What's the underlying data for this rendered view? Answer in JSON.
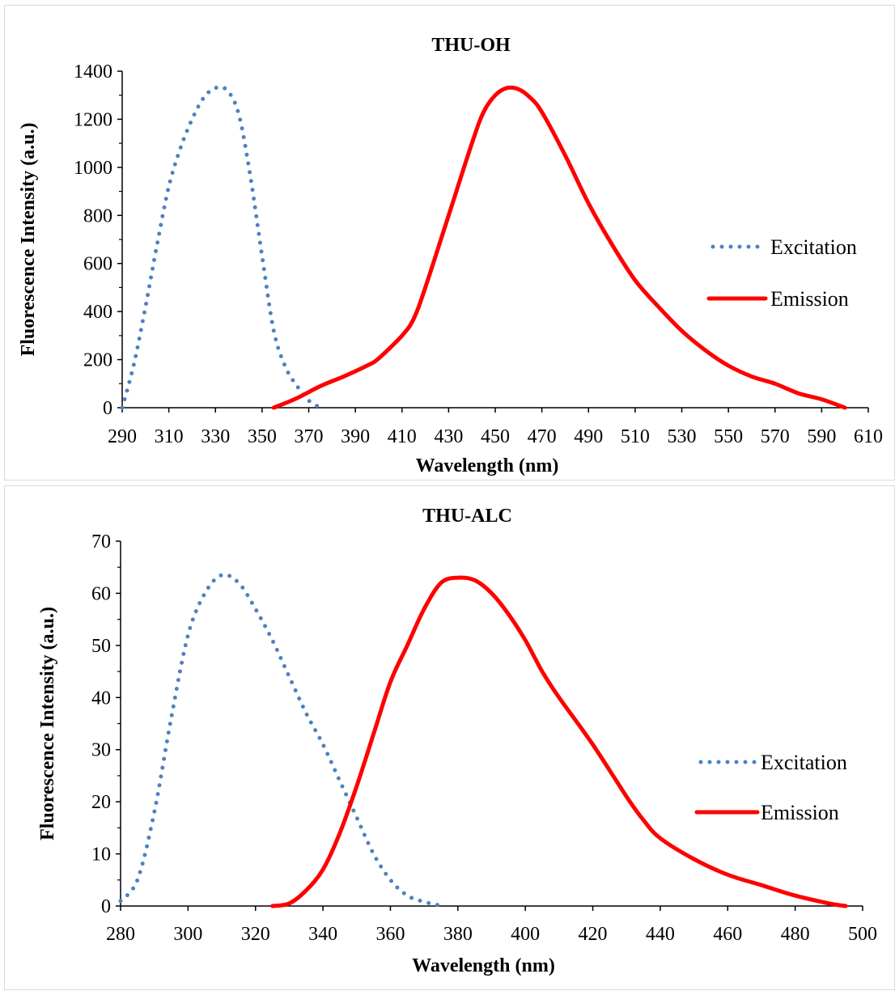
{
  "chart_data": [
    {
      "type": "line",
      "title": "THU-OH",
      "xlabel": "Wavelength (nm)",
      "ylabel": "Fluorescence Intensity (a.u.)",
      "xlim": [
        290,
        610
      ],
      "ylim": [
        0,
        1400
      ],
      "x_ticks": [
        "290",
        "310",
        "330",
        "350",
        "370",
        "390",
        "410",
        "430",
        "450",
        "470",
        "490",
        "510",
        "530",
        "550",
        "570",
        "590",
        "610"
      ],
      "y_ticks": [
        "0",
        "200",
        "400",
        "600",
        "800",
        "1000",
        "1200",
        "1400"
      ],
      "grid": false,
      "legend": "right",
      "series": [
        {
          "name": "Excitation",
          "style": "dotted",
          "color": "#4f81bd",
          "x": [
            290,
            295,
            300,
            305,
            310,
            315,
            320,
            325,
            330,
            335,
            340,
            345,
            350,
            355,
            360,
            365,
            370,
            375
          ],
          "y": [
            0,
            180,
            420,
            680,
            920,
            1080,
            1200,
            1290,
            1330,
            1320,
            1220,
            960,
            630,
            320,
            170,
            90,
            30,
            0
          ]
        },
        {
          "name": "Emission",
          "style": "solid",
          "color": "#ff0000",
          "x": [
            355,
            365,
            375,
            385,
            395,
            400,
            410,
            415,
            420,
            430,
            440,
            445,
            450,
            455,
            460,
            465,
            470,
            480,
            490,
            500,
            510,
            520,
            530,
            540,
            550,
            560,
            570,
            580,
            590,
            600
          ],
          "y": [
            0,
            40,
            90,
            130,
            175,
            205,
            300,
            370,
            500,
            800,
            1100,
            1230,
            1300,
            1330,
            1325,
            1290,
            1230,
            1050,
            850,
            680,
            530,
            420,
            320,
            240,
            175,
            130,
            100,
            60,
            35,
            0
          ]
        }
      ]
    },
    {
      "type": "line",
      "title": "THU-ALC",
      "xlabel": "Wavelength (nm)",
      "ylabel": "Fluorescence Intensity (a.u.)",
      "xlim": [
        280,
        500
      ],
      "ylim": [
        0,
        70
      ],
      "x_ticks": [
        "280",
        "300",
        "320",
        "340",
        "360",
        "380",
        "400",
        "420",
        "440",
        "460",
        "480",
        "500"
      ],
      "y_ticks": [
        "0",
        "10",
        "20",
        "30",
        "40",
        "50",
        "60",
        "70"
      ],
      "grid": false,
      "legend": "right",
      "series": [
        {
          "name": "Excitation",
          "style": "dotted",
          "color": "#4f81bd",
          "x": [
            280,
            285,
            290,
            295,
            300,
            305,
            310,
            315,
            320,
            325,
            330,
            335,
            340,
            345,
            350,
            355,
            360,
            365,
            370,
            374
          ],
          "y": [
            1,
            5,
            18,
            36,
            52,
            60,
            63.5,
            62,
            57,
            51,
            44,
            37,
            31,
            24,
            17,
            10,
            5,
            2,
            0.8,
            0.2
          ]
        },
        {
          "name": "Emission",
          "style": "solid",
          "color": "#ff0000",
          "x": [
            325,
            330,
            335,
            340,
            345,
            350,
            355,
            360,
            365,
            370,
            375,
            380,
            385,
            390,
            395,
            400,
            405,
            410,
            420,
            430,
            435,
            440,
            450,
            460,
            470,
            480,
            490,
            495
          ],
          "y": [
            0,
            0.5,
            3,
            7,
            14,
            23,
            33,
            43,
            50,
            57,
            62,
            63,
            62.5,
            60,
            56,
            51,
            45,
            40,
            31,
            21,
            16.5,
            13,
            9,
            6,
            4,
            2,
            0.5,
            0
          ]
        }
      ]
    }
  ]
}
